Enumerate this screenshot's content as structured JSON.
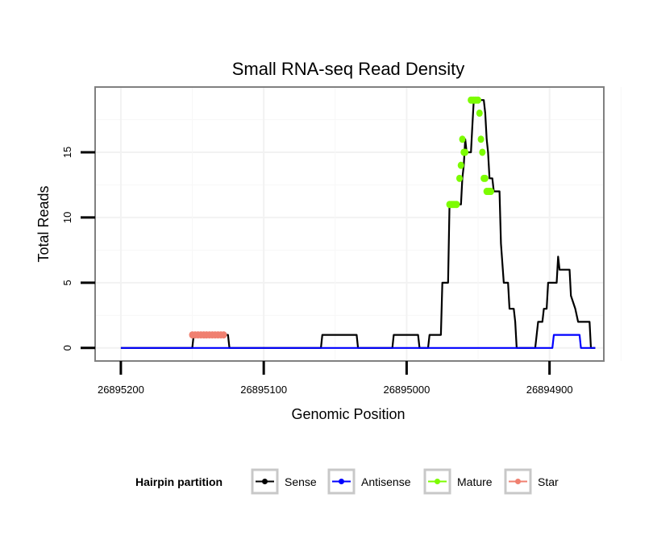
{
  "chart_data": {
    "type": "line",
    "title": "Small RNA-seq Read Density",
    "xlabel": "Genomic Position",
    "ylabel": "Total Reads",
    "xlim": [
      26895218,
      26894862
    ],
    "ylim": [
      -1,
      20
    ],
    "x_reversed": true,
    "grid": true,
    "xticks": [
      26895200,
      26895100,
      26895000,
      26894900
    ],
    "xtick_labels": [
      "26895200",
      "26895100",
      "26895000",
      "26894900"
    ],
    "yticks": [
      0,
      5,
      10,
      15
    ],
    "ytick_labels": [
      "0",
      "5",
      "10",
      "15"
    ],
    "legend": {
      "title": "Hairpin partition",
      "placement": "bottom",
      "entries": [
        {
          "label": "Sense",
          "color": "#000000"
        },
        {
          "label": "Antisense",
          "color": "#0000ff"
        },
        {
          "label": "Mature",
          "color": "#7cfc00"
        },
        {
          "label": "Star",
          "color": "#f08070"
        }
      ]
    },
    "series": [
      {
        "name": "Sense",
        "color": "#000000",
        "style": "step",
        "points": [
          [
            26895200,
            0
          ],
          [
            26895150,
            0
          ],
          [
            26895149,
            1
          ],
          [
            26895125,
            1
          ],
          [
            26895124,
            0
          ],
          [
            26895060,
            0
          ],
          [
            26895059,
            1
          ],
          [
            26895035,
            1
          ],
          [
            26895034,
            0
          ],
          [
            26895010,
            0
          ],
          [
            26895009,
            1
          ],
          [
            26894992,
            1
          ],
          [
            26894991,
            0
          ],
          [
            26894985,
            0
          ],
          [
            26894984,
            1
          ],
          [
            26894976,
            1
          ],
          [
            26894975,
            5
          ],
          [
            26894971,
            5
          ],
          [
            26894970,
            11
          ],
          [
            26894962,
            11
          ],
          [
            26894961,
            13
          ],
          [
            26894960,
            14
          ],
          [
            26894959,
            16
          ],
          [
            26894958,
            15
          ],
          [
            26894955,
            15
          ],
          [
            26894954,
            17
          ],
          [
            26894953,
            19
          ],
          [
            26894946,
            19
          ],
          [
            26894945,
            18
          ],
          [
            26894944,
            16
          ],
          [
            26894943,
            15
          ],
          [
            26894942,
            13
          ],
          [
            26894940,
            13
          ],
          [
            26894939,
            12
          ],
          [
            26894935,
            12
          ],
          [
            26894934,
            8
          ],
          [
            26894932,
            5
          ],
          [
            26894929,
            5
          ],
          [
            26894928,
            3
          ],
          [
            26894925,
            3
          ],
          [
            26894924,
            2
          ],
          [
            26894923,
            0
          ],
          [
            26894910,
            0
          ],
          [
            26894909,
            1
          ],
          [
            26894908,
            2
          ],
          [
            26894905,
            2
          ],
          [
            26894904,
            3
          ],
          [
            26894902,
            3
          ],
          [
            26894901,
            5
          ],
          [
            26894895,
            5
          ],
          [
            26894894,
            7
          ],
          [
            26894893,
            6
          ],
          [
            26894886,
            6
          ],
          [
            26894885,
            4
          ],
          [
            26894882,
            3
          ],
          [
            26894880,
            2
          ],
          [
            26894872,
            2
          ],
          [
            26894871,
            0
          ],
          [
            26894868,
            0
          ]
        ]
      },
      {
        "name": "Antisense",
        "color": "#0000ff",
        "style": "step",
        "points": [
          [
            26895200,
            0
          ],
          [
            26894898,
            0
          ],
          [
            26894897,
            1
          ],
          [
            26894879,
            1
          ],
          [
            26894878,
            0
          ],
          [
            26894868,
            0
          ]
        ]
      },
      {
        "name": "Mature",
        "color": "#7cfc00",
        "style": "points",
        "points": [
          [
            26894970,
            11
          ],
          [
            26894969,
            11
          ],
          [
            26894968,
            11
          ],
          [
            26894967,
            11
          ],
          [
            26894966,
            11
          ],
          [
            26894965,
            11
          ],
          [
            26894963,
            13
          ],
          [
            26894962,
            14
          ],
          [
            26894961,
            16
          ],
          [
            26894960,
            15
          ],
          [
            26894959,
            15
          ],
          [
            26894955,
            19
          ],
          [
            26894954,
            19
          ],
          [
            26894953,
            19
          ],
          [
            26894952,
            19
          ],
          [
            26894951,
            19
          ],
          [
            26894950,
            19
          ],
          [
            26894949,
            18
          ],
          [
            26894948,
            16
          ],
          [
            26894947,
            15
          ],
          [
            26894946,
            13
          ],
          [
            26894945,
            13
          ],
          [
            26894944,
            12
          ],
          [
            26894943,
            12
          ],
          [
            26894942,
            12
          ],
          [
            26894941,
            12
          ]
        ]
      },
      {
        "name": "Star",
        "color": "#f08070",
        "style": "points",
        "points": [
          [
            26895150,
            1
          ],
          [
            26895148,
            1
          ],
          [
            26895146,
            1
          ],
          [
            26895144,
            1
          ],
          [
            26895142,
            1
          ],
          [
            26895140,
            1
          ],
          [
            26895138,
            1
          ],
          [
            26895136,
            1
          ],
          [
            26895134,
            1
          ],
          [
            26895132,
            1
          ],
          [
            26895130,
            1
          ],
          [
            26895128,
            1
          ]
        ]
      }
    ]
  }
}
